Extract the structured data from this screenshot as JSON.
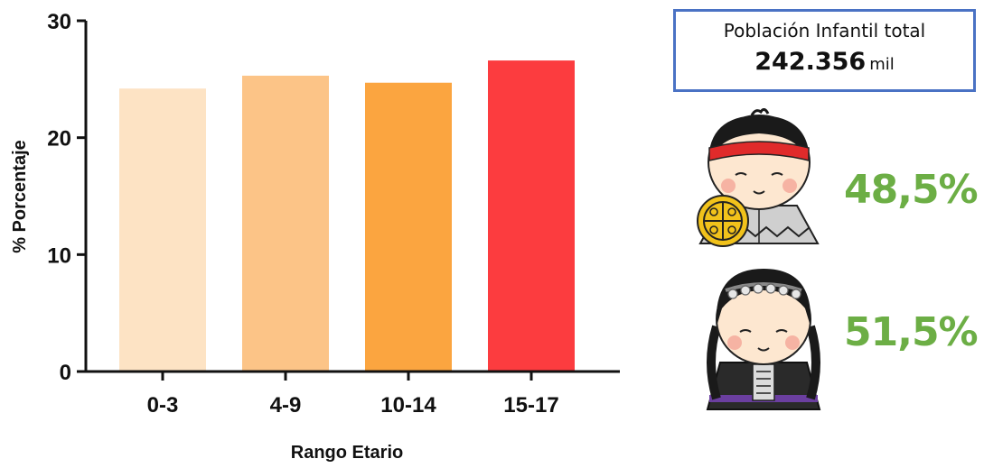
{
  "chart_data": {
    "type": "bar",
    "categories": [
      "0-3",
      "4-9",
      "10-14",
      "15-17"
    ],
    "values": [
      24.2,
      25.3,
      24.7,
      26.6
    ],
    "colors": [
      "#fde3c4",
      "#fcc487",
      "#fba540",
      "#fc3c3f"
    ],
    "xlabel": "Rango Etario",
    "ylabel": "% Porcentaje",
    "ylim": [
      0,
      30
    ],
    "yticks": [
      0,
      10,
      20,
      30
    ],
    "grid": false
  },
  "summary": {
    "title": "Población Infantil total",
    "value": "242.356",
    "unit": "mil"
  },
  "gender": [
    {
      "icon": "boy-figure-icon",
      "percent": "48,5%"
    },
    {
      "icon": "girl-figure-icon",
      "percent": "51,5%"
    }
  ],
  "colors": {
    "accent_green": "#6cae45",
    "box_border": "#4a72c4"
  }
}
